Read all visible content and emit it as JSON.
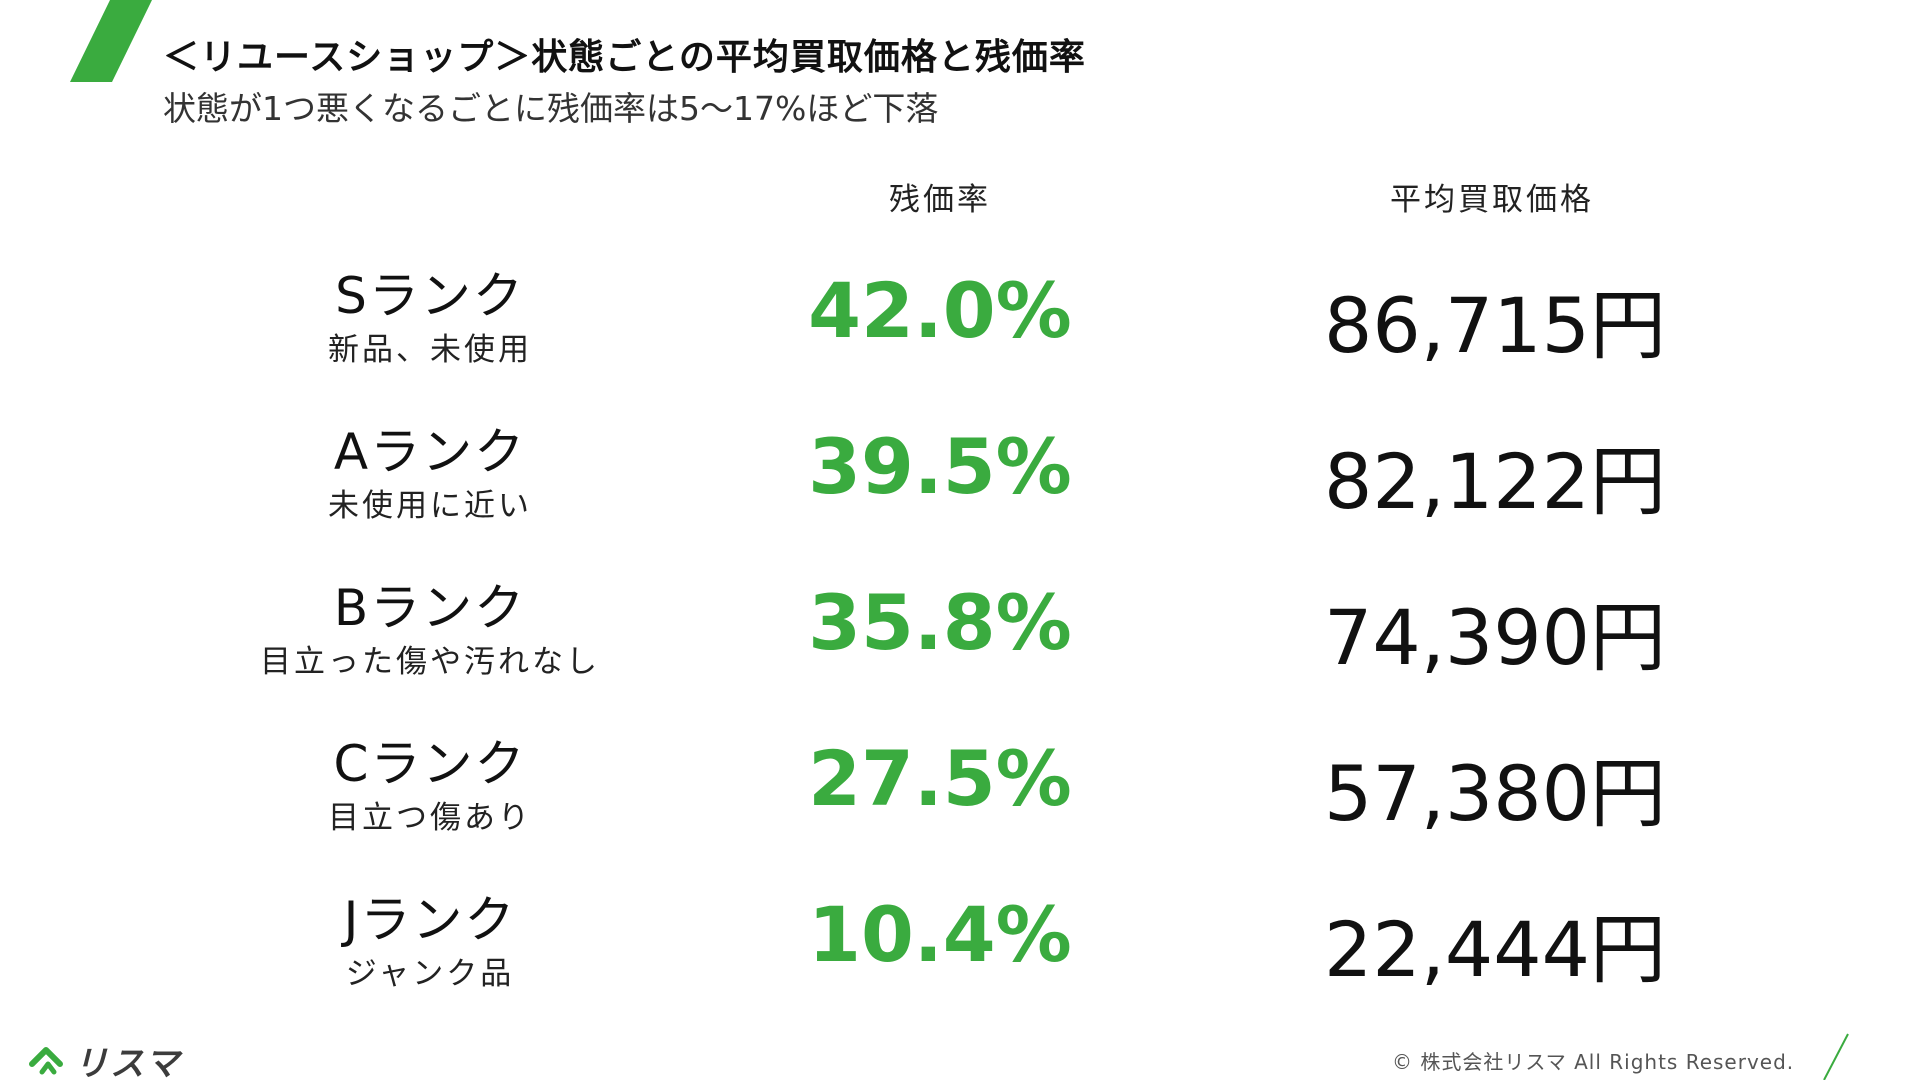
{
  "header": {
    "title": "＜リユースショップ＞状態ごとの平均買取価格と残価率",
    "subtitle": "状態が1つ悪くなるごとに残価率は5〜17%ほど下落"
  },
  "columns": {
    "rate": "残価率",
    "price": "平均買取価格"
  },
  "rows": [
    {
      "rank": "Sランク",
      "desc": "新品、未使用",
      "rate": "42.0%",
      "price": "86,715円"
    },
    {
      "rank": "Aランク",
      "desc": "未使用に近い",
      "rate": "39.5%",
      "price": "82,122円"
    },
    {
      "rank": "Bランク",
      "desc": "目立った傷や汚れなし",
      "rate": "35.8%",
      "price": "74,390円"
    },
    {
      "rank": "Cランク",
      "desc": "目立つ傷あり",
      "rate": "27.5%",
      "price": "57,380円"
    },
    {
      "rank": "Jランク",
      "desc": "ジャンク品",
      "rate": "10.4%",
      "price": "22,444円"
    }
  ],
  "footer": {
    "logo": "リスマ",
    "copyright": "© 株式会社リスマ All Rights Reserved."
  },
  "colors": {
    "accent": "#3aab3f",
    "text": "#111111"
  }
}
